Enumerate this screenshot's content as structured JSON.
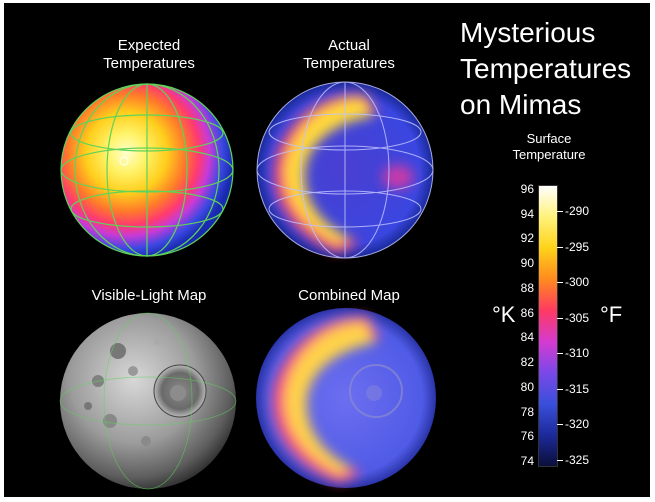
{
  "title": "Mysterious\nTemperatures\non Mimas",
  "panels": [
    {
      "label": "Expected\nTemperatures"
    },
    {
      "label": "Actual\nTemperatures"
    },
    {
      "label": "Visible-Light Map"
    },
    {
      "label": "Combined Map"
    }
  ],
  "scale": {
    "title": "Surface\nTemperature",
    "kelvin_unit": "°K",
    "fahrenheit_unit": "°F",
    "kelvin_ticks": [
      "96",
      "94",
      "92",
      "90",
      "88",
      "86",
      "84",
      "82",
      "80",
      "78",
      "76",
      "74"
    ],
    "fahrenheit_ticks": [
      "-290",
      "-295",
      "-300",
      "-305",
      "-310",
      "-315",
      "-320",
      "-325"
    ],
    "colors": [
      "#ffffff",
      "#fff27a",
      "#ffd21a",
      "#ff8a1e",
      "#ff3a62",
      "#d53bd0",
      "#7a48e8",
      "#3a4fdb",
      "#1c2a9a",
      "#0a0f3a"
    ]
  }
}
